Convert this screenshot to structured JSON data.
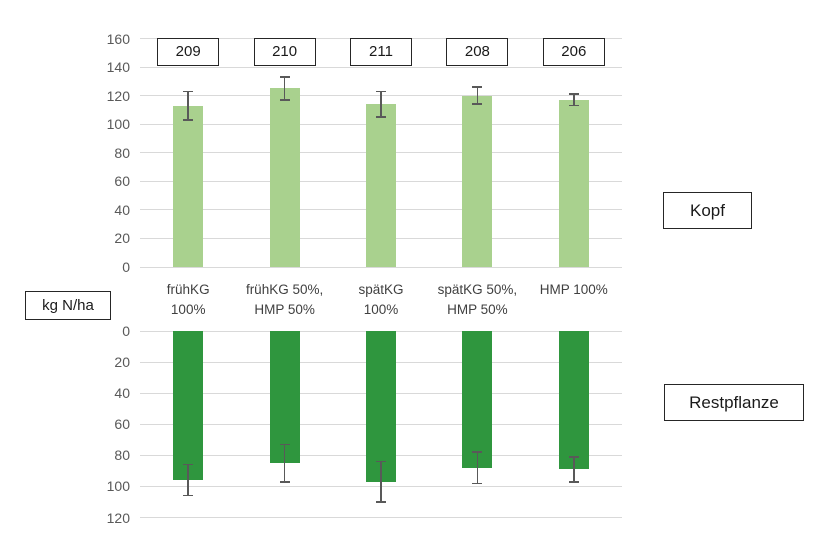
{
  "labels": {
    "unit_box": "kg N/ha",
    "top_series_box": "Kopf",
    "bottom_series_box": "Restpflanze"
  },
  "colors": {
    "bar_light_green": "#a9d18e",
    "bar_dark_green": "#2f963e",
    "gridline": "#d9d9d9",
    "tick_text": "#595959",
    "category_text": "#404040",
    "error_bar": "#595959",
    "box_border": "#262626",
    "box_text": "#1a1a1a"
  },
  "chart_data": [
    {
      "type": "bar",
      "name": "Kopf",
      "orientation": "up",
      "categories": [
        "frühKG 100%",
        "frühKG 50%, HMP 50%",
        "spätKG 100%",
        "spätKG 50%, HMP 50%",
        "HMP 100%"
      ],
      "xtick_lines": [
        [
          "frühKG",
          "100%"
        ],
        [
          "frühKG 50%,",
          "HMP 50%"
        ],
        [
          "spätKG",
          "100%"
        ],
        [
          "spätKG 50%,",
          "HMP 50%"
        ],
        [
          "HMP 100%"
        ]
      ],
      "values": [
        113,
        125,
        114,
        120,
        117
      ],
      "error_bars": [
        10,
        8,
        9,
        6,
        4
      ],
      "total_labels": [
        "209",
        "210",
        "211",
        "208",
        "206"
      ],
      "ylabel": "kg N/ha",
      "ylim": [
        0,
        160
      ],
      "ytick_step": 20,
      "bar_color_key": "bar_light_green",
      "grid": true,
      "legend": "none"
    },
    {
      "type": "bar",
      "name": "Restpflanze",
      "orientation": "down",
      "categories": [
        "frühKG 100%",
        "frühKG 50%, HMP 50%",
        "spätKG 100%",
        "spätKG 50%, HMP 50%",
        "HMP 100%"
      ],
      "values": [
        96,
        85,
        97,
        88,
        89
      ],
      "error_bars": [
        10,
        12,
        13,
        10,
        8
      ],
      "ylabel": "kg N/ha",
      "ylim": [
        0,
        120
      ],
      "ytick_step": 20,
      "bar_color_key": "bar_dark_green",
      "grid": true,
      "legend": "none"
    }
  ]
}
